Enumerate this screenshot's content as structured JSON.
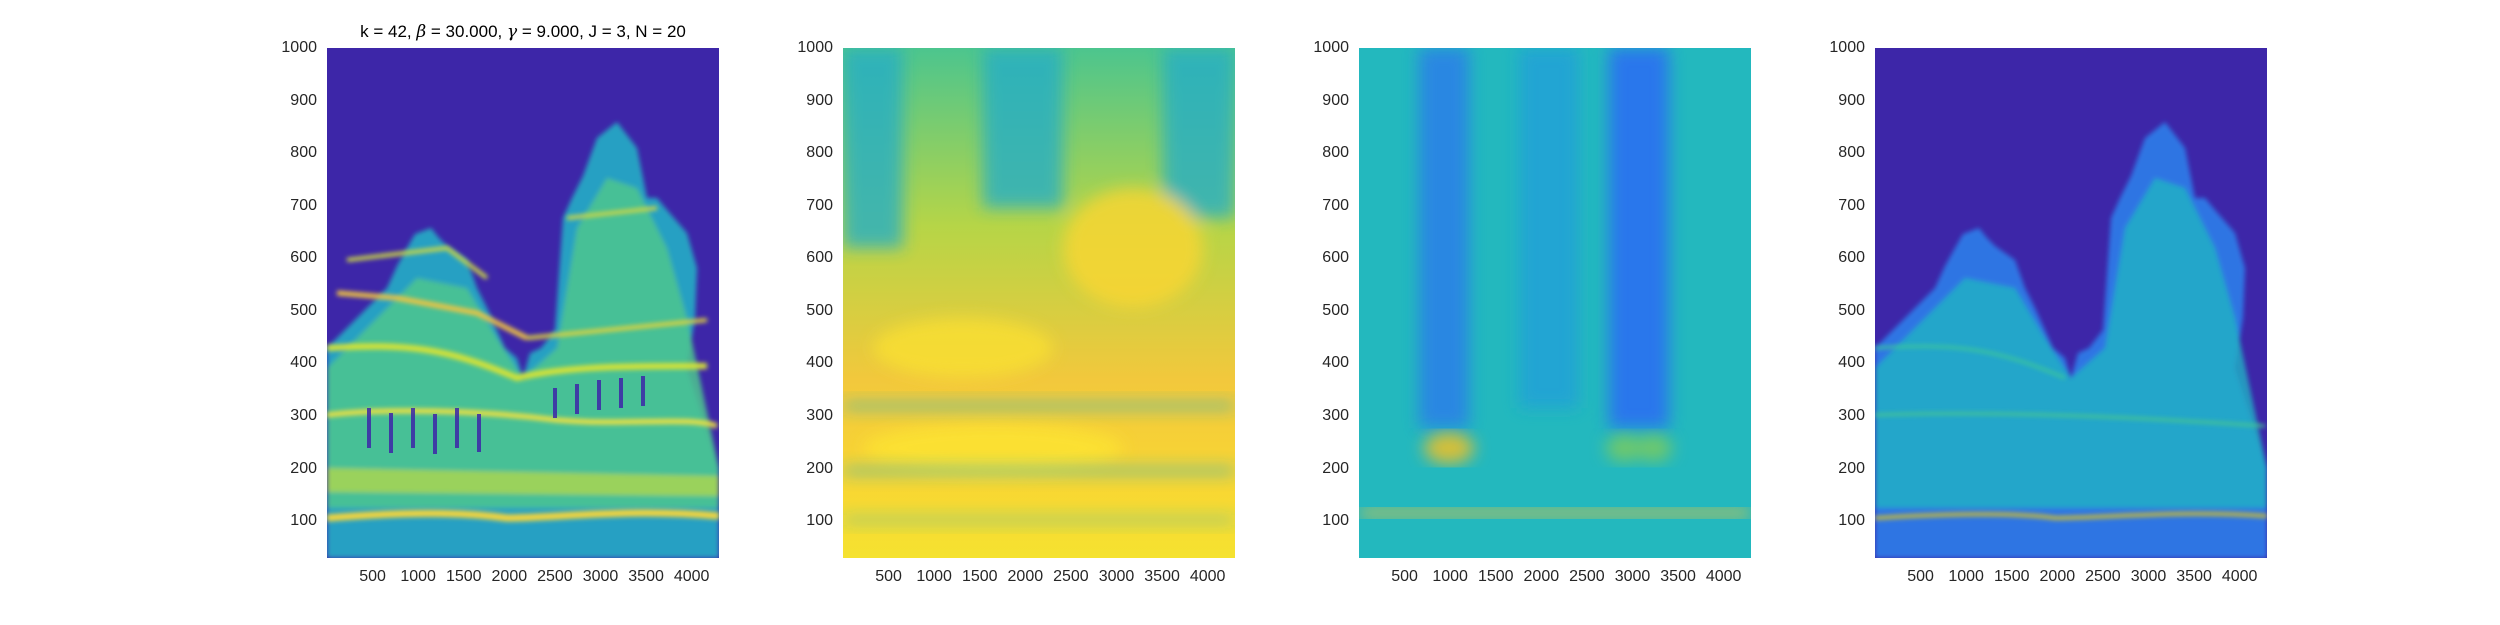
{
  "title": {
    "prefix": "k = 42, ",
    "beta_sym": "β",
    "beta_val": " = 30.000, ",
    "gamma_sym": "γ",
    "rest": " = 9.000, J = 3, N = 20"
  },
  "colors": {
    "background": "#3d26a8",
    "low": "#3d26a8",
    "mid": "#23b8be",
    "high": "#f9fb0e"
  },
  "chart_data": [
    {
      "type": "heatmap",
      "title": "k = 42, β = 30.000, γ = 9.000, J = 3, N = 20",
      "xlim": [
        0,
        4300
      ],
      "ylim": [
        30,
        1000
      ],
      "xticks": [
        "500",
        "1000",
        "1500",
        "2000",
        "2500",
        "3000",
        "3500",
        "4000"
      ],
      "yticks": [
        "100",
        "200",
        "300",
        "400",
        "500",
        "600",
        "700",
        "800",
        "900",
        "1000"
      ],
      "colormap": "parula",
      "grid": false
    },
    {
      "type": "heatmap",
      "xlim": [
        0,
        4300
      ],
      "ylim": [
        30,
        1000
      ],
      "xticks": [
        "500",
        "1000",
        "1500",
        "2000",
        "2500",
        "3000",
        "3500",
        "4000"
      ],
      "yticks": [
        "100",
        "200",
        "300",
        "400",
        "500",
        "600",
        "700",
        "800",
        "900",
        "1000"
      ],
      "colormap": "parula",
      "grid": false
    },
    {
      "type": "heatmap",
      "xlim": [
        0,
        4300
      ],
      "ylim": [
        30,
        1000
      ],
      "xticks": [
        "500",
        "1000",
        "1500",
        "2000",
        "2500",
        "3000",
        "3500",
        "4000"
      ],
      "yticks": [
        "100",
        "200",
        "300",
        "400",
        "500",
        "600",
        "700",
        "800",
        "900",
        "1000"
      ],
      "colormap": "parula",
      "grid": false
    },
    {
      "type": "heatmap",
      "xlim": [
        0,
        4300
      ],
      "ylim": [
        30,
        1000
      ],
      "xticks": [
        "500",
        "1000",
        "1500",
        "2000",
        "2500",
        "3000",
        "3500",
        "4000"
      ],
      "yticks": [
        "100",
        "200",
        "300",
        "400",
        "500",
        "600",
        "700",
        "800",
        "900",
        "1000"
      ],
      "colormap": "parula",
      "grid": false
    }
  ]
}
